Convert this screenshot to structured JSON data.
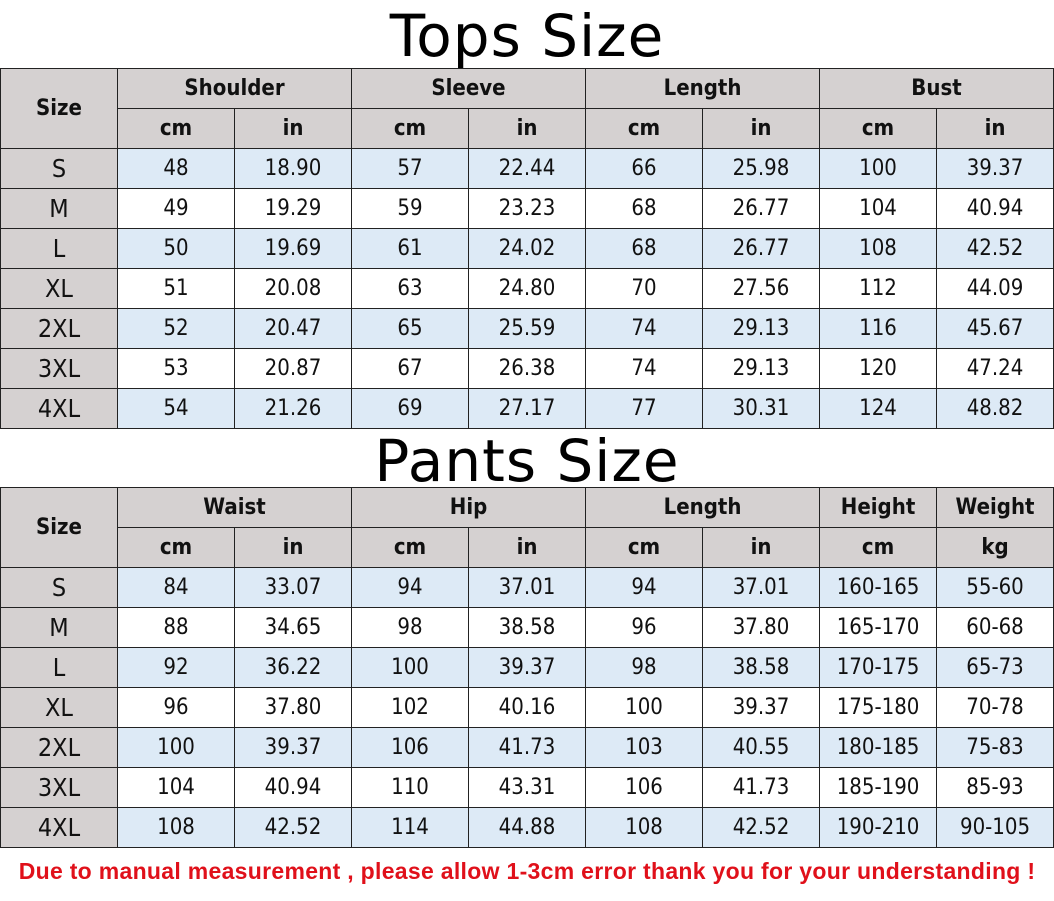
{
  "tops": {
    "title": "Tops Size",
    "size_label": "Size",
    "groups": [
      "Shoulder",
      "Sleeve",
      "Length",
      "Bust"
    ],
    "units": [
      "cm",
      "in",
      "cm",
      "in",
      "cm",
      "in",
      "cm",
      "in"
    ],
    "rows": [
      [
        "S",
        "48",
        "18.90",
        "57",
        "22.44",
        "66",
        "25.98",
        "100",
        "39.37"
      ],
      [
        "M",
        "49",
        "19.29",
        "59",
        "23.23",
        "68",
        "26.77",
        "104",
        "40.94"
      ],
      [
        "L",
        "50",
        "19.69",
        "61",
        "24.02",
        "68",
        "26.77",
        "108",
        "42.52"
      ],
      [
        "XL",
        "51",
        "20.08",
        "63",
        "24.80",
        "70",
        "27.56",
        "112",
        "44.09"
      ],
      [
        "2XL",
        "52",
        "20.47",
        "65",
        "25.59",
        "74",
        "29.13",
        "116",
        "45.67"
      ],
      [
        "3XL",
        "53",
        "20.87",
        "67",
        "26.38",
        "74",
        "29.13",
        "120",
        "47.24"
      ],
      [
        "4XL",
        "54",
        "21.26",
        "69",
        "27.17",
        "77",
        "30.31",
        "124",
        "48.82"
      ]
    ]
  },
  "pants": {
    "title": "Pants Size",
    "size_label": "Size",
    "groups": [
      "Waist",
      "Hip",
      "Length",
      "Height",
      "Weight"
    ],
    "units": [
      "cm",
      "in",
      "cm",
      "in",
      "cm",
      "in",
      "cm",
      "kg"
    ],
    "rows": [
      [
        "S",
        "84",
        "33.07",
        "94",
        "37.01",
        "94",
        "37.01",
        "160-165",
        "55-60"
      ],
      [
        "M",
        "88",
        "34.65",
        "98",
        "38.58",
        "96",
        "37.80",
        "165-170",
        "60-68"
      ],
      [
        "L",
        "92",
        "36.22",
        "100",
        "39.37",
        "98",
        "38.58",
        "170-175",
        "65-73"
      ],
      [
        "XL",
        "96",
        "37.80",
        "102",
        "40.16",
        "100",
        "39.37",
        "175-180",
        "70-78"
      ],
      [
        "2XL",
        "100",
        "39.37",
        "106",
        "41.73",
        "103",
        "40.55",
        "180-185",
        "75-83"
      ],
      [
        "3XL",
        "104",
        "40.94",
        "110",
        "43.31",
        "106",
        "41.73",
        "185-190",
        "85-93"
      ],
      [
        "4XL",
        "108",
        "42.52",
        "114",
        "44.88",
        "108",
        "42.52",
        "190-210",
        "90-105"
      ]
    ]
  },
  "note": "Due to manual measurement , please allow 1-3cm error thank you for your understanding !",
  "colors": {
    "header": "#d5d1d1",
    "row_alt": "#ddeaf6",
    "note": "#e0101a"
  }
}
